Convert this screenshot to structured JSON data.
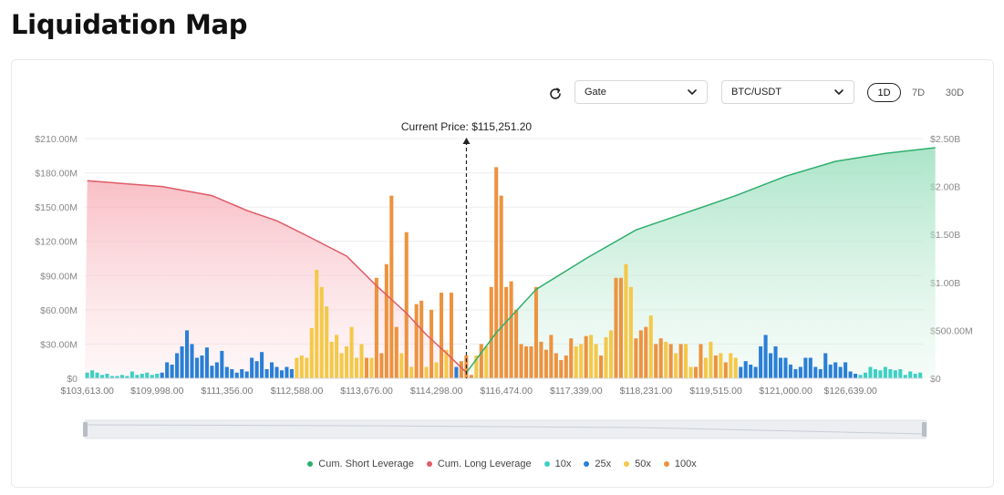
{
  "page": {
    "title": "Liquidation Map"
  },
  "controls": {
    "exchange": "Gate",
    "pair": "BTC/USDT",
    "ranges": [
      {
        "label": "1D",
        "active": true
      },
      {
        "label": "7D",
        "active": false
      },
      {
        "label": "30D",
        "active": false
      }
    ],
    "refresh_icon": "refresh-icon"
  },
  "colors": {
    "short_line": "#2eae6c",
    "long_line": "#e05a66",
    "lev10": "#3fd0c3",
    "lev25": "#2a7fd6",
    "lev50": "#f4c849",
    "lev100": "#ec9340"
  },
  "chart_data": {
    "type": "bar",
    "current_price_label": "Current Price: $115,251.20",
    "current_price_index": 76,
    "y_left": {
      "min": 0,
      "max": 210,
      "unit": "M",
      "ticks": [
        "$0",
        "$30.00M",
        "$60.00M",
        "$90.00M",
        "$120.00M",
        "$150.00M",
        "$180.00M",
        "$210.00M"
      ]
    },
    "y_right": {
      "min": 0,
      "max": 2.5,
      "unit": "B",
      "ticks": [
        "$0",
        "$500.00M",
        "$1.00B",
        "$1.50B",
        "$2.00B",
        "$2.50B"
      ]
    },
    "x_tick_labels": [
      {
        "index": 0,
        "label": "$103,613.00"
      },
      {
        "index": 14,
        "label": "$109,998.00"
      },
      {
        "index": 28,
        "label": "$111,356.00"
      },
      {
        "index": 42,
        "label": "$112,588.00"
      },
      {
        "index": 56,
        "label": "$113,676.00"
      },
      {
        "index": 70,
        "label": "$114,298.00"
      },
      {
        "index": 84,
        "label": "$116,474.00"
      },
      {
        "index": 98,
        "label": "$117,339.00"
      },
      {
        "index": 112,
        "label": "$118,231.00"
      },
      {
        "index": 126,
        "label": "$119,515.00"
      },
      {
        "index": 140,
        "label": "$121,000.00"
      },
      {
        "index": 153,
        "label": "$126,639.00"
      }
    ],
    "bars": [
      [
        1,
        5
      ],
      [
        1,
        7
      ],
      [
        1,
        5
      ],
      [
        1,
        3
      ],
      [
        1,
        4
      ],
      [
        1,
        2
      ],
      [
        1,
        2
      ],
      [
        1,
        3
      ],
      [
        1,
        2
      ],
      [
        1,
        6
      ],
      [
        1,
        3
      ],
      [
        1,
        4
      ],
      [
        1,
        5
      ],
      [
        1,
        3
      ],
      [
        1,
        4
      ],
      [
        2,
        5
      ],
      [
        2,
        14
      ],
      [
        2,
        12
      ],
      [
        2,
        22
      ],
      [
        2,
        28
      ],
      [
        2,
        42
      ],
      [
        2,
        30
      ],
      [
        2,
        18
      ],
      [
        2,
        20
      ],
      [
        2,
        27
      ],
      [
        2,
        11
      ],
      [
        2,
        14
      ],
      [
        2,
        24
      ],
      [
        2,
        10
      ],
      [
        2,
        8
      ],
      [
        2,
        5
      ],
      [
        2,
        8
      ],
      [
        2,
        6
      ],
      [
        2,
        18
      ],
      [
        2,
        15
      ],
      [
        2,
        23
      ],
      [
        2,
        8
      ],
      [
        2,
        14
      ],
      [
        2,
        10
      ],
      [
        2,
        7
      ],
      [
        2,
        10
      ],
      [
        2,
        8
      ],
      [
        3,
        18
      ],
      [
        3,
        20
      ],
      [
        3,
        18
      ],
      [
        3,
        44
      ],
      [
        3,
        95
      ],
      [
        3,
        80
      ],
      [
        3,
        63
      ],
      [
        3,
        32
      ],
      [
        3,
        38
      ],
      [
        3,
        22
      ],
      [
        3,
        28
      ],
      [
        3,
        45
      ],
      [
        3,
        18
      ],
      [
        3,
        30
      ],
      [
        4,
        18
      ],
      [
        3,
        18
      ],
      [
        4,
        88
      ],
      [
        4,
        22
      ],
      [
        4,
        100
      ],
      [
        4,
        160
      ],
      [
        4,
        45
      ],
      [
        3,
        22
      ],
      [
        4,
        128
      ],
      [
        3,
        10
      ],
      [
        4,
        65
      ],
      [
        4,
        68
      ],
      [
        3,
        10
      ],
      [
        4,
        60
      ],
      [
        3,
        14
      ],
      [
        4,
        75
      ],
      [
        3,
        25
      ],
      [
        4,
        75
      ],
      [
        2,
        10
      ],
      [
        4,
        15
      ],
      [
        4,
        20
      ],
      [
        4,
        3
      ],
      [
        3,
        20
      ],
      [
        4,
        30
      ],
      [
        3,
        28
      ],
      [
        4,
        80
      ],
      [
        4,
        185
      ],
      [
        4,
        160
      ],
      [
        4,
        80
      ],
      [
        4,
        85
      ],
      [
        4,
        60
      ],
      [
        4,
        30
      ],
      [
        4,
        28
      ],
      [
        4,
        28
      ],
      [
        4,
        80
      ],
      [
        4,
        32
      ],
      [
        4,
        25
      ],
      [
        4,
        38
      ],
      [
        4,
        22
      ],
      [
        4,
        16
      ],
      [
        4,
        20
      ],
      [
        4,
        35
      ],
      [
        3,
        28
      ],
      [
        3,
        30
      ],
      [
        4,
        37
      ],
      [
        3,
        38
      ],
      [
        3,
        30
      ],
      [
        4,
        20
      ],
      [
        3,
        36
      ],
      [
        3,
        42
      ],
      [
        4,
        88
      ],
      [
        4,
        88
      ],
      [
        3,
        100
      ],
      [
        3,
        80
      ],
      [
        4,
        35
      ],
      [
        4,
        42
      ],
      [
        4,
        45
      ],
      [
        3,
        55
      ],
      [
        4,
        30
      ],
      [
        4,
        35
      ],
      [
        3,
        32
      ],
      [
        4,
        30
      ],
      [
        3,
        22
      ],
      [
        4,
        30
      ],
      [
        3,
        30
      ],
      [
        3,
        10
      ],
      [
        4,
        10
      ],
      [
        4,
        30
      ],
      [
        3,
        18
      ],
      [
        3,
        32
      ],
      [
        4,
        20
      ],
      [
        3,
        22
      ],
      [
        4,
        14
      ],
      [
        3,
        22
      ],
      [
        3,
        18
      ],
      [
        2,
        10
      ],
      [
        2,
        15
      ],
      [
        2,
        12
      ],
      [
        2,
        10
      ],
      [
        2,
        28
      ],
      [
        2,
        38
      ],
      [
        2,
        22
      ],
      [
        2,
        28
      ],
      [
        2,
        18
      ],
      [
        2,
        18
      ],
      [
        2,
        12
      ],
      [
        2,
        8
      ],
      [
        2,
        10
      ],
      [
        2,
        18
      ],
      [
        2,
        18
      ],
      [
        2,
        10
      ],
      [
        2,
        8
      ],
      [
        2,
        22
      ],
      [
        2,
        12
      ],
      [
        2,
        14
      ],
      [
        2,
        10
      ],
      [
        2,
        14
      ],
      [
        2,
        6
      ],
      [
        2,
        4
      ],
      [
        1,
        3
      ],
      [
        1,
        5
      ],
      [
        1,
        10
      ],
      [
        1,
        8
      ],
      [
        1,
        7
      ],
      [
        1,
        10
      ],
      [
        1,
        8
      ],
      [
        1,
        7
      ],
      [
        1,
        8
      ],
      [
        1,
        3
      ],
      [
        1,
        6
      ],
      [
        1,
        4
      ],
      [
        1,
        5
      ]
    ],
    "cum_long_path_m": [
      [
        0,
        173
      ],
      [
        15,
        168
      ],
      [
        25,
        160
      ],
      [
        32,
        147
      ],
      [
        38,
        138
      ],
      [
        44,
        125
      ],
      [
        52,
        107
      ],
      [
        58,
        81
      ],
      [
        64,
        57
      ],
      [
        68,
        38
      ],
      [
        72,
        22
      ],
      [
        76,
        5
      ]
    ],
    "cum_short_path_m": [
      [
        76,
        5
      ],
      [
        82,
        40
      ],
      [
        90,
        78
      ],
      [
        100,
        105
      ],
      [
        110,
        130
      ],
      [
        120,
        145
      ],
      [
        130,
        160
      ],
      [
        140,
        177
      ],
      [
        150,
        190
      ],
      [
        160,
        197
      ],
      [
        170,
        202
      ]
    ],
    "series": [
      {
        "name": "Cum. Short Leverage",
        "kind": "line"
      },
      {
        "name": "Cum. Long Leverage",
        "kind": "line"
      },
      {
        "name": "10x",
        "kind": "bar"
      },
      {
        "name": "25x",
        "kind": "bar"
      },
      {
        "name": "50x",
        "kind": "bar"
      },
      {
        "name": "100x",
        "kind": "bar"
      }
    ]
  },
  "legend": [
    {
      "label": "Cum. Short Leverage",
      "color": "#2eae6c"
    },
    {
      "label": "Cum. Long Leverage",
      "color": "#e05a66"
    },
    {
      "label": "10x",
      "color": "#3fd0c3"
    },
    {
      "label": "25x",
      "color": "#2a7fd6"
    },
    {
      "label": "50x",
      "color": "#f4c849"
    },
    {
      "label": "100x",
      "color": "#ec9340"
    }
  ]
}
